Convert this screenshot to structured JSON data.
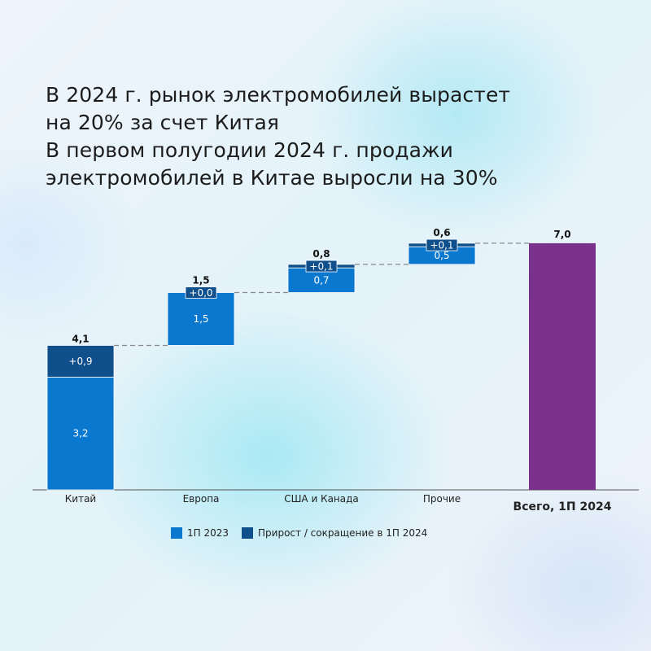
{
  "title_lines": [
    "В 2024 г. рынок электромобилей вырастет",
    "на 20% за счет Китая",
    "В первом полугодии 2024 г. продажи",
    "электромобилей в Китае выросли на 30%"
  ],
  "colors": {
    "base": "#0b78cf",
    "growth": "#0f4f8c",
    "total": "#79318c",
    "connector": "#8a8a8a",
    "axis": "#555555"
  },
  "chart_data": {
    "type": "bar",
    "subtype": "waterfall",
    "categories": [
      "Китай",
      "Европа",
      "США и Канада",
      "Прочие",
      "Всего, 1П 2024"
    ],
    "series": [
      {
        "name": "1П 2023",
        "values": [
          3.2,
          1.5,
          0.7,
          0.5,
          null
        ]
      },
      {
        "name": "Прирост / сокращение в 1П 2024",
        "values": [
          0.9,
          0.0,
          0.1,
          0.1,
          null
        ]
      }
    ],
    "totals": [
      4.1,
      1.5,
      0.8,
      0.6,
      7.0
    ],
    "base_labels": [
      "3,2",
      "1,5",
      "0,7",
      "0,5",
      ""
    ],
    "growth_labels": [
      "+0,9",
      "+0,0",
      "+0,1",
      "+0,1",
      ""
    ],
    "total_labels": [
      "4,1",
      "1,5",
      "0,8",
      "0,6",
      "7,0"
    ],
    "ylim": [
      0,
      7.0
    ],
    "grid": false,
    "legend": "bottom"
  }
}
